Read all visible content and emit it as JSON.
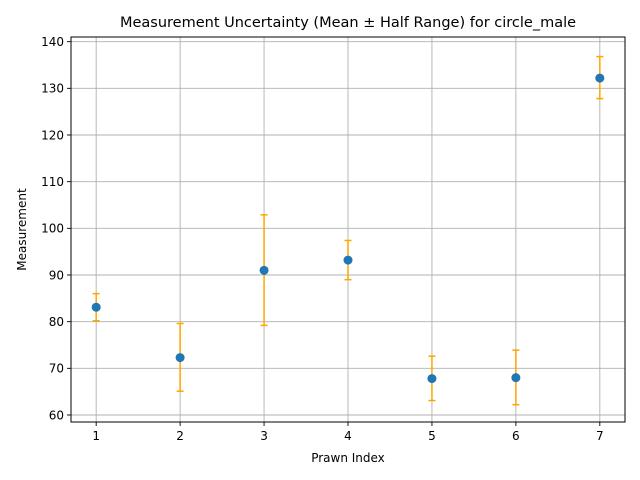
{
  "chart_data": {
    "type": "scatter",
    "title": "Measurement Uncertainty (Mean ± Half Range) for circle_male",
    "xlabel": "Prawn Index",
    "ylabel": "Measurement",
    "xlim": [
      0.7,
      7.3
    ],
    "ylim": [
      58.5,
      141
    ],
    "xticks": [
      1,
      2,
      3,
      4,
      5,
      6,
      7
    ],
    "yticks": [
      60,
      70,
      80,
      90,
      100,
      110,
      120,
      130,
      140
    ],
    "grid": true,
    "marker_color": "#1f77b4",
    "errorbar_color": "#ffa500",
    "points": [
      {
        "x": 1,
        "y": 83.1,
        "low": 80.2,
        "high": 86.0
      },
      {
        "x": 2,
        "y": 72.3,
        "low": 65.1,
        "high": 79.6
      },
      {
        "x": 3,
        "y": 91.0,
        "low": 79.2,
        "high": 102.9
      },
      {
        "x": 4,
        "y": 93.2,
        "low": 89.0,
        "high": 97.4
      },
      {
        "x": 5,
        "y": 67.8,
        "low": 63.1,
        "high": 72.6
      },
      {
        "x": 6,
        "y": 68.0,
        "low": 62.2,
        "high": 73.9
      },
      {
        "x": 7,
        "y": 132.2,
        "low": 127.8,
        "high": 136.8
      }
    ]
  }
}
